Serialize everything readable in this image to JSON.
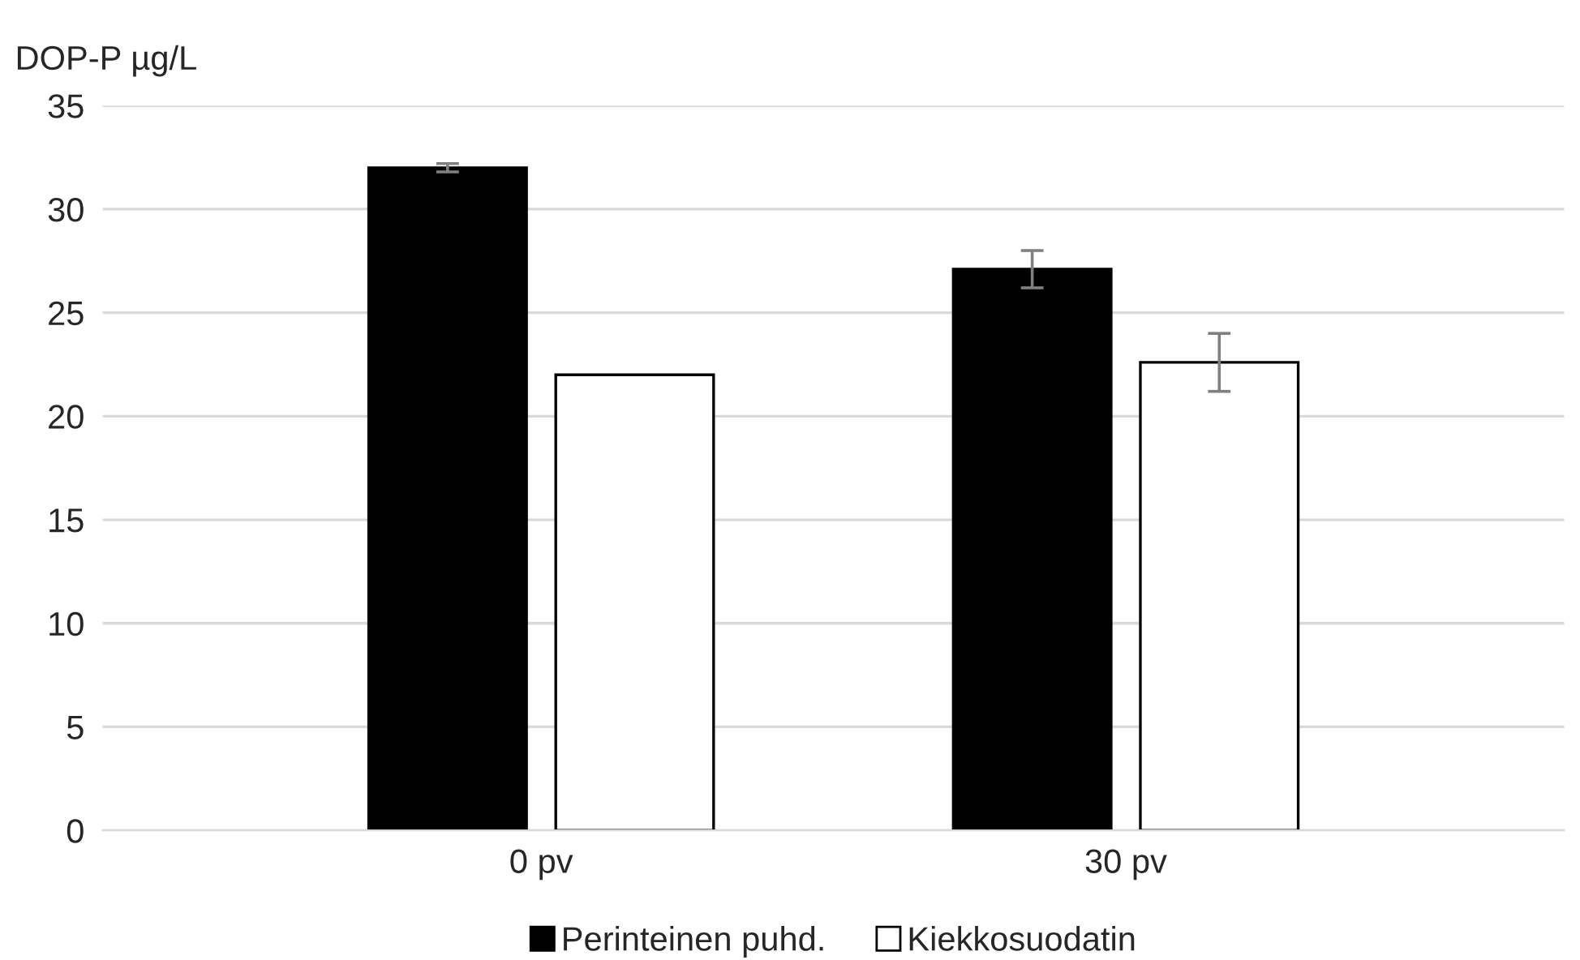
{
  "chart_data": {
    "type": "bar",
    "ylabel": "DOP-P µg/L",
    "categories": [
      "0 pv",
      "30 pv"
    ],
    "series": [
      {
        "name": "Perinteinen puhd.",
        "color": "#000000",
        "values": [
          32.0,
          27.1
        ],
        "errors": [
          0.2,
          0.9
        ]
      },
      {
        "name": "Kiekkosuodatin",
        "color": "#ffffff",
        "values": [
          22.0,
          22.6
        ],
        "errors": [
          null,
          1.4
        ]
      }
    ],
    "ylim": [
      0,
      35
    ],
    "yticks": [
      0,
      5,
      10,
      15,
      20,
      25,
      30,
      35
    ],
    "grid": "y",
    "legend": "bottom"
  }
}
